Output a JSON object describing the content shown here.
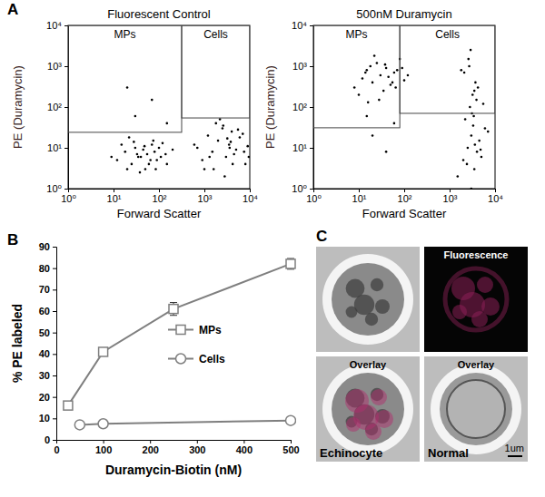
{
  "chart_data": [
    {
      "type": "scatter",
      "panel_label": "A",
      "title": "Fluorescent Control",
      "x_label": "Forward Scatter",
      "y_label": "PE (Duramycin)",
      "log": true,
      "color": "#000000",
      "xlim": [
        1,
        10000
      ],
      "ylim": [
        1,
        10000
      ],
      "xticks": [
        {
          "value": 1,
          "label": "10⁰"
        },
        {
          "value": 10,
          "label": "10¹"
        },
        {
          "value": 100,
          "label": "10²"
        },
        {
          "value": 1000,
          "label": "10³"
        },
        {
          "value": 10000,
          "label": "10⁴"
        }
      ],
      "yticks": [
        {
          "value": 1,
          "label": "10⁰"
        },
        {
          "value": 10,
          "label": "10¹"
        },
        {
          "value": 100,
          "label": "10²"
        },
        {
          "value": 1000,
          "label": "10³"
        },
        {
          "value": 10000,
          "label": "10⁴"
        }
      ],
      "gates": [
        {
          "label": "MPs",
          "x_range": [
            1,
            316
          ],
          "y_range": [
            24,
            10000
          ]
        },
        {
          "label": "Cells",
          "x_range": [
            316,
            10000
          ],
          "y_range": [
            54,
            10000
          ]
        }
      ],
      "x": [
        12,
        18,
        25,
        30,
        40,
        55,
        70,
        90,
        20,
        35,
        45,
        60,
        80,
        110,
        15,
        28,
        50,
        65,
        100,
        140,
        22,
        38,
        75,
        150,
        200,
        9,
        33,
        48,
        85,
        120,
        30,
        150,
        70,
        20,
        700,
        900,
        1200,
        1500,
        2000,
        2500,
        3000,
        3500,
        4000,
        5000,
        6000,
        8000,
        1000,
        1800,
        2800,
        3800,
        4500,
        7000,
        9000,
        1300,
        2200,
        3200,
        4200,
        5500,
        7500,
        600,
        1600,
        2600,
        3600,
        9500
      ],
      "values": [
        5,
        8,
        4,
        10,
        6,
        7,
        12,
        5,
        3,
        6,
        9,
        4,
        8,
        6,
        12,
        14,
        3,
        5,
        10,
        7,
        18,
        2.5,
        15,
        4,
        9,
        6,
        7,
        11,
        3,
        13,
        60,
        40,
        150,
        300,
        10,
        5,
        20,
        8,
        15,
        30,
        6,
        12,
        25,
        9,
        18,
        4,
        3,
        40,
        2,
        14,
        7,
        22,
        11,
        6,
        50,
        17,
        4,
        28,
        8,
        12,
        3,
        35,
        10,
        6
      ]
    },
    {
      "type": "scatter",
      "title": "500nM Duramycin",
      "x_label": "Forward Scatter",
      "y_label": "PE (Duramycin)",
      "log": true,
      "color": "#000000",
      "xlim": [
        1,
        10000
      ],
      "ylim": [
        1,
        10000
      ],
      "xticks": [
        {
          "value": 1,
          "label": "10⁰"
        },
        {
          "value": 10,
          "label": "10¹"
        },
        {
          "value": 100,
          "label": "10²"
        },
        {
          "value": 1000,
          "label": "10³"
        },
        {
          "value": 10000,
          "label": "10⁴"
        }
      ],
      "yticks": [
        {
          "value": 1,
          "label": "10⁰"
        },
        {
          "value": 10,
          "label": "10¹"
        },
        {
          "value": 100,
          "label": "10²"
        },
        {
          "value": 1000,
          "label": "10³"
        },
        {
          "value": 10000,
          "label": "10⁴"
        }
      ],
      "gates": [
        {
          "label": "MPs",
          "x_range": [
            1,
            80
          ],
          "y_range": [
            31,
            10000
          ]
        },
        {
          "label": "Cells",
          "x_range": [
            80,
            10000
          ],
          "y_range": [
            70,
            10000
          ]
        }
      ],
      "x": [
        8,
        12,
        15,
        20,
        25,
        30,
        40,
        50,
        60,
        80,
        100,
        10,
        18,
        35,
        45,
        70,
        22,
        28,
        55,
        120,
        14,
        38,
        65,
        90,
        16,
        20,
        40,
        60,
        15,
        1500,
        2000,
        2500,
        3000,
        3500,
        4000,
        2200,
        2800,
        3200,
        3700,
        4500,
        5000,
        6000,
        1800,
        2600,
        3400,
        4200,
        2400,
        3000,
        3600,
        5500,
        7000,
        2100,
        2900,
        3300,
        3900,
        4800,
        2700,
        3100,
        3500
      ],
      "values": [
        300,
        500,
        800,
        400,
        1200,
        600,
        900,
        350,
        700,
        1500,
        450,
        200,
        1000,
        250,
        550,
        800,
        1800,
        150,
        400,
        600,
        700,
        1100,
        300,
        900,
        130,
        20,
        8,
        40,
        60,
        2,
        5,
        10,
        20,
        3,
        8,
        50,
        100,
        200,
        400,
        15,
        6,
        30,
        800,
        1500,
        60,
        300,
        4,
        1,
        12,
        120,
        25,
        700,
        2500,
        35,
        150,
        9,
        1000,
        70,
        250
      ]
    },
    {
      "type": "line",
      "panel_label": "B",
      "x_label": "Duramycin-Biotin (nM)",
      "y_label": "% PE labeled",
      "xlim": [
        0,
        500
      ],
      "ylim": [
        0,
        90
      ],
      "xticks": [
        0,
        100,
        200,
        300,
        400,
        500
      ],
      "yticks": [
        0,
        10,
        20,
        30,
        40,
        50,
        60,
        70,
        80,
        90
      ],
      "legend": "right",
      "series": [
        {
          "name": "MPs",
          "color": "#7f7f7f",
          "marker": "square",
          "x": [
            25,
            100,
            250,
            500
          ],
          "values": [
            16,
            41,
            61,
            82
          ],
          "errors": [
            1.5,
            1.5,
            3,
            2.5
          ]
        },
        {
          "name": "Cells",
          "color": "#7f7f7f",
          "marker": "circle",
          "x": [
            50,
            100,
            500
          ],
          "values": [
            7,
            7.5,
            9
          ],
          "errors": [
            1.5,
            1,
            1
          ]
        }
      ]
    },
    {
      "type": "image",
      "panel_label": "C",
      "image_labels": [
        "Fluorescence",
        "Overlay",
        "Overlay"
      ],
      "captions": [
        "Echinocyte",
        "Normal"
      ],
      "scale_bar": "1um"
    }
  ]
}
